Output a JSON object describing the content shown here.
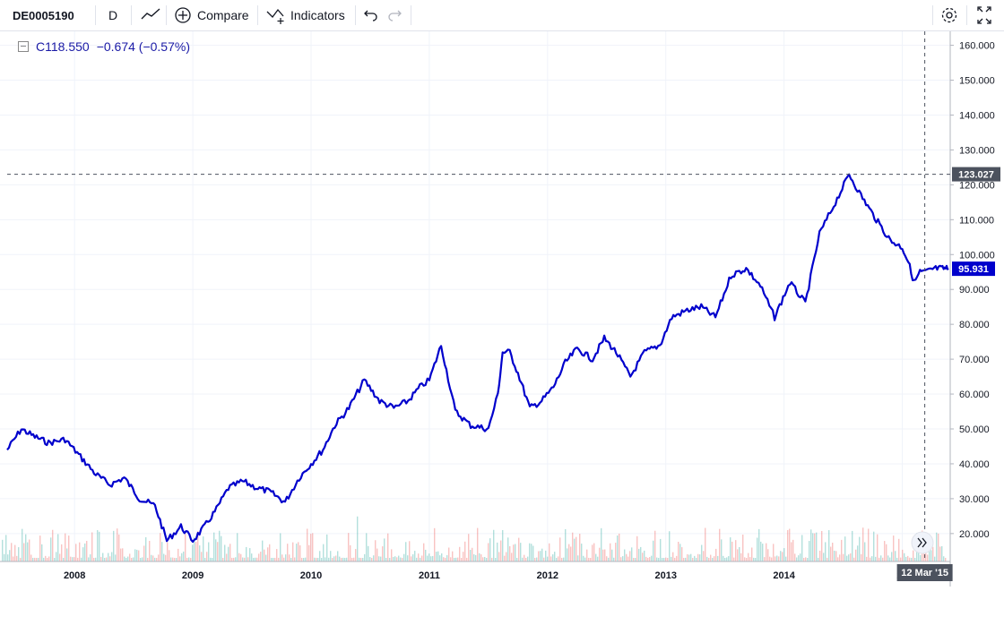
{
  "toolbar": {
    "symbol": "DE0005190",
    "interval": "D",
    "compare_label": "Compare",
    "indicators_label": "Indicators"
  },
  "legend": {
    "close": "C118.550",
    "change": "−0.674 (−0.57%)"
  },
  "crosshair": {
    "price_label": "123.027",
    "date_label": "12 Mar '15"
  },
  "last_price_label": "95.931",
  "colors": {
    "line": "#0000cc",
    "volume_up": "#26a69a",
    "volume_down": "#ef5350",
    "grid": "#f0f3fa",
    "last_price_badge": "#0000cc",
    "crosshair_badge": "#4c525e"
  },
  "chart_data": {
    "type": "line",
    "ylim": [
      12,
      164
    ],
    "y_ticks": [
      "160.000",
      "150.000",
      "140.000",
      "130.000",
      "120.000",
      "110.000",
      "100.000",
      "90.000",
      "80.000",
      "70.000",
      "60.000",
      "50.000",
      "40.000",
      "30.000",
      "20.000"
    ],
    "x_ticks": [
      "2008",
      "2009",
      "2010",
      "2011",
      "2012",
      "2013",
      "2014",
      "20"
    ],
    "x_range": [
      2007.43,
      2015.39
    ],
    "grid": true,
    "series": [
      {
        "x": [
          2007.43,
          2007.55,
          2007.65,
          2007.78,
          2007.92,
          2008.05,
          2008.18,
          2008.3,
          2008.42,
          2008.55,
          2008.68,
          2008.78,
          2008.9,
          2009.0,
          2009.1,
          2009.2,
          2009.3,
          2009.42,
          2009.55,
          2009.65,
          2009.78,
          2009.9,
          2010.0,
          2010.1,
          2010.2,
          2010.32,
          2010.45,
          2010.58,
          2010.7,
          2010.82,
          2010.92,
          2011.0,
          2011.1,
          2011.22,
          2011.35,
          2011.5,
          2011.58,
          2011.62,
          2011.68,
          2011.75,
          2011.85,
          2011.95,
          2012.05,
          2012.15,
          2012.25,
          2012.38,
          2012.48,
          2012.58,
          2012.7,
          2012.82,
          2012.95,
          2013.05,
          2013.18,
          2013.3,
          2013.42,
          2013.55,
          2013.68,
          2013.8,
          2013.92,
          2014.05,
          2014.18,
          2014.3,
          2014.42,
          2014.55,
          2014.65,
          2014.78,
          2014.9,
          2015.0,
          2015.05,
          2015.1,
          2015.15,
          2015.2,
          2015.27,
          2015.32,
          2015.36,
          2015.39
        ],
        "y": [
          44,
          50,
          48,
          46,
          47,
          42,
          37,
          34,
          36,
          30,
          28,
          18,
          22,
          18,
          22,
          27,
          33,
          35,
          33,
          32,
          29,
          36,
          40,
          44,
          51,
          56,
          64,
          58,
          56,
          58,
          62,
          64,
          74,
          55,
          51,
          50,
          60,
          72,
          72,
          66,
          56,
          58,
          62,
          69,
          73,
          70,
          76,
          72,
          65,
          72,
          74,
          82,
          84,
          85,
          82,
          94,
          96,
          91,
          82,
          92,
          86,
          106,
          114,
          123,
          117,
          110,
          104,
          102,
          98,
          92,
          95,
          95,
          96,
          96,
          96,
          96
        ],
        "name": ""
      }
    ]
  }
}
